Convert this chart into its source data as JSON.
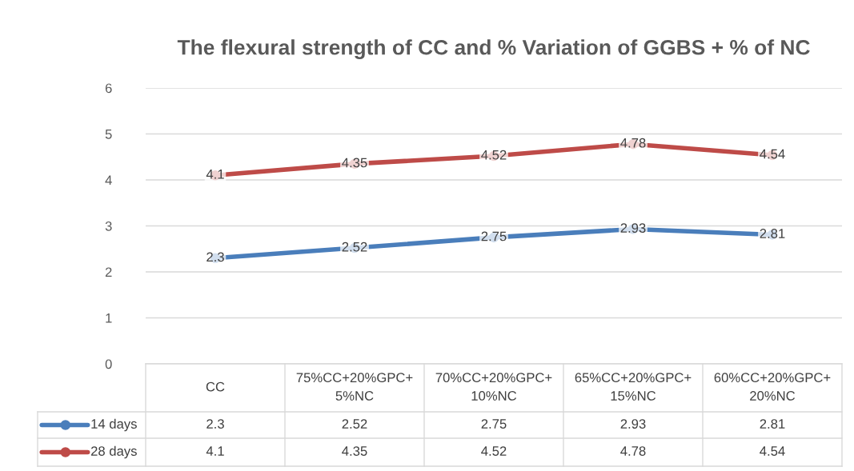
{
  "chart_data": {
    "type": "line",
    "title": "The flexural strength of CC and % Variation of GGBS + % of NC",
    "categories": [
      "CC",
      "75%CC+20%GPC+5%NC",
      "70%CC+20%GPC+10%NC",
      "65%CC+20%GPC+15%NC",
      "60%CC+20%GPC+20%NC"
    ],
    "series": [
      {
        "name": "14 days",
        "color": "#4a7ebb",
        "values": [
          2.3,
          2.52,
          2.75,
          2.93,
          2.81
        ],
        "value_labels": [
          "2.3",
          "2.52",
          "2.75",
          "2.93",
          "2.81"
        ]
      },
      {
        "name": "28 days",
        "color": "#be4b48",
        "values": [
          4.1,
          4.35,
          4.52,
          4.78,
          4.54
        ],
        "value_labels": [
          "4.1",
          "4.35",
          "4.52",
          "4.78",
          "4.54"
        ]
      }
    ],
    "ylim": [
      0,
      6
    ],
    "yticks": [
      0,
      1,
      2,
      3,
      4,
      5,
      6
    ],
    "grid": "y",
    "marker": "circle",
    "line_style": "solid",
    "legend": "bottom",
    "data_labels": true,
    "annotations": [
      "2.3",
      "2.52",
      "2.75",
      "2.93",
      "2.81",
      "4.1",
      "4.35",
      "4.52",
      "4.78",
      "4.54"
    ]
  }
}
